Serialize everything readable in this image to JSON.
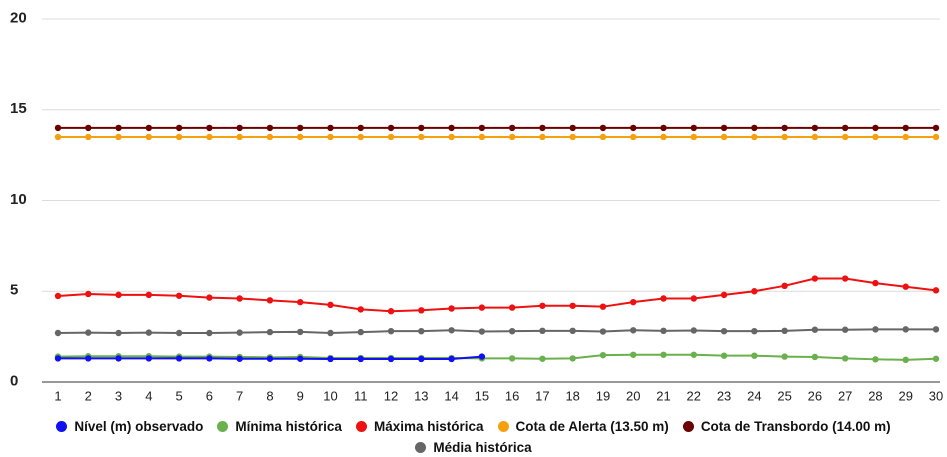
{
  "chart_data": {
    "type": "line",
    "categories": [
      "1",
      "2",
      "3",
      "4",
      "5",
      "6",
      "7",
      "8",
      "9",
      "10",
      "11",
      "12",
      "13",
      "14",
      "15",
      "16",
      "17",
      "18",
      "19",
      "20",
      "21",
      "22",
      "23",
      "24",
      "25",
      "26",
      "27",
      "28",
      "29",
      "30"
    ],
    "ylim": [
      0,
      20
    ],
    "yticks": [
      0,
      5,
      10,
      15,
      20
    ],
    "grid": true,
    "series": [
      {
        "name": "Nível (m) observado",
        "color": "#1010f0",
        "values": [
          1.3,
          1.3,
          1.3,
          1.3,
          1.3,
          1.3,
          1.28,
          1.28,
          1.28,
          1.27,
          1.27,
          1.27,
          1.27,
          1.27,
          1.4,
          null,
          null,
          null,
          null,
          null,
          null,
          null,
          null,
          null,
          null,
          null,
          null,
          null,
          null,
          null
        ]
      },
      {
        "name": "Mínima histórica",
        "color": "#6ab04c",
        "values": [
          1.4,
          1.42,
          1.42,
          1.42,
          1.4,
          1.4,
          1.38,
          1.36,
          1.38,
          1.32,
          1.32,
          1.32,
          1.32,
          1.32,
          1.3,
          1.3,
          1.28,
          1.3,
          1.48,
          1.5,
          1.5,
          1.5,
          1.45,
          1.45,
          1.4,
          1.38,
          1.3,
          1.25,
          1.22,
          1.28
        ]
      },
      {
        "name": "Máxima histórica",
        "color": "#ee1111",
        "values": [
          4.74,
          4.85,
          4.8,
          4.8,
          4.75,
          4.65,
          4.6,
          4.5,
          4.4,
          4.25,
          4.0,
          3.9,
          3.95,
          4.05,
          4.1,
          4.1,
          4.2,
          4.2,
          4.15,
          4.4,
          4.6,
          4.6,
          4.8,
          5.0,
          5.3,
          5.7,
          5.7,
          5.45,
          5.25,
          5.05
        ]
      },
      {
        "name": "Cota de Alerta (13.50 m)",
        "color": "#f5a00f",
        "values": [
          13.5,
          13.5,
          13.5,
          13.5,
          13.5,
          13.5,
          13.5,
          13.5,
          13.5,
          13.5,
          13.5,
          13.5,
          13.5,
          13.5,
          13.5,
          13.5,
          13.5,
          13.5,
          13.5,
          13.5,
          13.5,
          13.5,
          13.5,
          13.5,
          13.5,
          13.5,
          13.5,
          13.5,
          13.5,
          13.5
        ]
      },
      {
        "name": "Cota de Transbordo (14.00 m)",
        "color": "#6b0000",
        "values": [
          14,
          14,
          14,
          14,
          14,
          14,
          14,
          14,
          14,
          14,
          14,
          14,
          14,
          14,
          14,
          14,
          14,
          14,
          14,
          14,
          14,
          14,
          14,
          14,
          14,
          14,
          14,
          14,
          14,
          14
        ]
      },
      {
        "name": "Média histórica",
        "color": "#666666",
        "values": [
          2.7,
          2.72,
          2.7,
          2.72,
          2.7,
          2.7,
          2.72,
          2.75,
          2.76,
          2.7,
          2.75,
          2.8,
          2.8,
          2.85,
          2.78,
          2.8,
          2.82,
          2.82,
          2.78,
          2.85,
          2.82,
          2.84,
          2.8,
          2.8,
          2.82,
          2.88,
          2.88,
          2.9,
          2.9,
          2.9
        ]
      }
    ]
  }
}
